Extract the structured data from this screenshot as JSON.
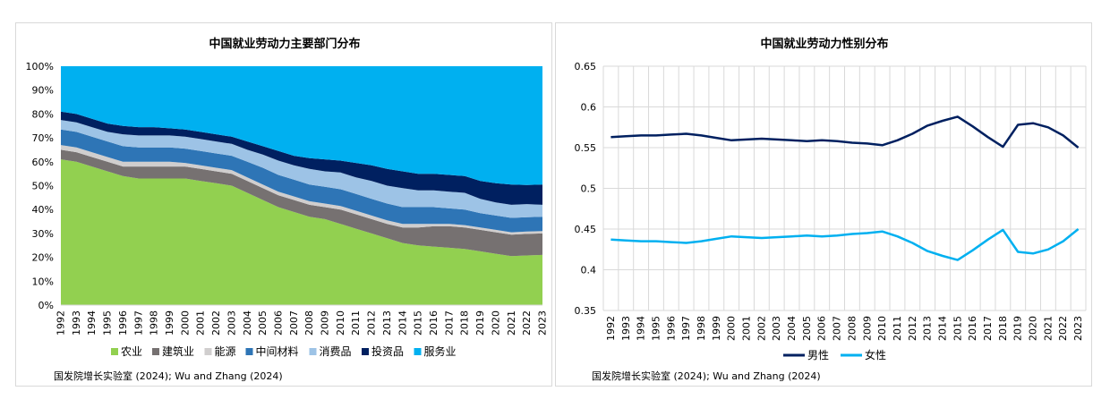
{
  "chart_data": [
    {
      "type": "area",
      "stacked": true,
      "title": "中国就业劳动力主要部门分布",
      "x": [
        "1992",
        "1993",
        "1994",
        "1995",
        "1996",
        "1997",
        "1998",
        "1999",
        "2000",
        "2001",
        "2002",
        "2003",
        "2004",
        "2005",
        "2006",
        "2007",
        "2008",
        "2009",
        "2010",
        "2011",
        "2012",
        "2013",
        "2014",
        "2015",
        "2016",
        "2017",
        "2018",
        "2019",
        "2020",
        "2021",
        "2022",
        "2023"
      ],
      "yticks": [
        "0%",
        "10%",
        "20%",
        "30%",
        "40%",
        "50%",
        "60%",
        "70%",
        "80%",
        "90%",
        "100%"
      ],
      "ylim": [
        0,
        100
      ],
      "legend_position": "bottom",
      "series": [
        {
          "name": "农业",
          "color": "#92d050",
          "values": [
            61,
            60,
            58,
            56,
            54,
            53,
            53,
            53,
            53,
            52,
            51,
            50,
            47,
            44,
            41,
            39,
            37,
            36,
            34,
            32,
            30,
            28,
            26,
            25,
            24.5,
            24,
            23.5,
            22.5,
            21.5,
            20.5,
            20.8,
            21
          ]
        },
        {
          "name": "建筑业",
          "color": "#767171",
          "values": [
            4,
            4,
            4,
            4,
            4,
            5,
            5,
            5,
            5,
            5,
            5,
            5,
            5,
            5,
            5,
            5,
            5,
            5,
            6,
            6,
            6,
            6,
            6.5,
            7.5,
            8.5,
            9,
            9,
            9,
            9,
            9,
            9,
            9
          ]
        },
        {
          "name": "能源",
          "color": "#d0cece",
          "values": [
            2,
            2,
            2,
            2,
            2,
            2,
            2,
            2,
            1.5,
            1.5,
            1.5,
            1.5,
            1.5,
            1.5,
            1.5,
            1.5,
            1.5,
            1.5,
            1.5,
            1.5,
            1.5,
            1.5,
            1.5,
            1.5,
            1,
            1,
            1,
            1,
            1,
            1,
            1,
            1
          ]
        },
        {
          "name": "中间材料",
          "color": "#2e75b6",
          "values": [
            6.5,
            6.5,
            6.5,
            6.5,
            6.5,
            6,
            6,
            6,
            6,
            6,
            6,
            6,
            6.5,
            7,
            7,
            7,
            7,
            7,
            7,
            7,
            7,
            7,
            7,
            7,
            7,
            6.5,
            6.5,
            6,
            6,
            6,
            6,
            6
          ]
        },
        {
          "name": "消费品",
          "color": "#9dc3e6",
          "values": [
            4,
            4,
            4,
            4,
            5,
            5,
            5,
            5,
            5,
            5,
            5,
            5,
            5,
            5.5,
            6,
            6,
            6.5,
            6.5,
            7,
            7,
            7.5,
            7.5,
            8,
            7,
            7,
            7,
            7,
            6,
            5.5,
            5.5,
            5.5,
            5
          ]
        },
        {
          "name": "投资品",
          "color": "#002060",
          "values": [
            3.5,
            3.5,
            3.5,
            3.5,
            3.5,
            3.5,
            3.5,
            3,
            3,
            3,
            3,
            3,
            3.5,
            3.5,
            4,
            4,
            4.5,
            5,
            5,
            6,
            6.5,
            7,
            7,
            7,
            7,
            7,
            7,
            7.5,
            8,
            8.5,
            8,
            8.5
          ]
        },
        {
          "name": "服务业",
          "color": "#00b0f0",
          "values": [
            19,
            20,
            22,
            24,
            25,
            25.5,
            25.5,
            26,
            26.5,
            27.5,
            28.5,
            29.5,
            31.5,
            33.5,
            35.5,
            37.5,
            38.5,
            39,
            39.5,
            40.5,
            41.5,
            43,
            44,
            45,
            45,
            45.5,
            46,
            48,
            49,
            49.5,
            49.7,
            49.5
          ]
        }
      ],
      "source": "国发院增长实验室 (2024); Wu and Zhang (2024)"
    },
    {
      "type": "line",
      "title": "中国就业劳动力性别分布",
      "x": [
        "1992",
        "1993",
        "1994",
        "1995",
        "1996",
        "1997",
        "1998",
        "1999",
        "2000",
        "2001",
        "2002",
        "2003",
        "2004",
        "2005",
        "2006",
        "2007",
        "2008",
        "2009",
        "2010",
        "2011",
        "2012",
        "2013",
        "2014",
        "2015",
        "2016",
        "2017",
        "2018",
        "2019",
        "2020",
        "2021",
        "2022",
        "2023"
      ],
      "yticks": [
        "0.35",
        "0.4",
        "0.45",
        "0.5",
        "0.55",
        "0.6",
        "0.65"
      ],
      "ylim": [
        0.35,
        0.65
      ],
      "grid": true,
      "legend_position": "bottom",
      "series": [
        {
          "name": "男性",
          "color": "#002060",
          "values": [
            0.563,
            0.564,
            0.565,
            0.565,
            0.566,
            0.567,
            0.565,
            0.562,
            0.559,
            0.56,
            0.561,
            0.56,
            0.559,
            0.558,
            0.559,
            0.558,
            0.556,
            0.555,
            0.553,
            0.559,
            0.567,
            0.577,
            0.583,
            0.588,
            0.576,
            0.563,
            0.551,
            0.578,
            0.58,
            0.575,
            0.565,
            0.55
          ]
        },
        {
          "name": "女性",
          "color": "#00b0f0",
          "values": [
            0.437,
            0.436,
            0.435,
            0.435,
            0.434,
            0.433,
            0.435,
            0.438,
            0.441,
            0.44,
            0.439,
            0.44,
            0.441,
            0.442,
            0.441,
            0.442,
            0.444,
            0.445,
            0.447,
            0.441,
            0.433,
            0.423,
            0.417,
            0.412,
            0.424,
            0.437,
            0.449,
            0.422,
            0.42,
            0.425,
            0.435,
            0.45
          ]
        }
      ],
      "source": "国发院增长实验室 (2024); Wu and Zhang (2024)"
    }
  ]
}
